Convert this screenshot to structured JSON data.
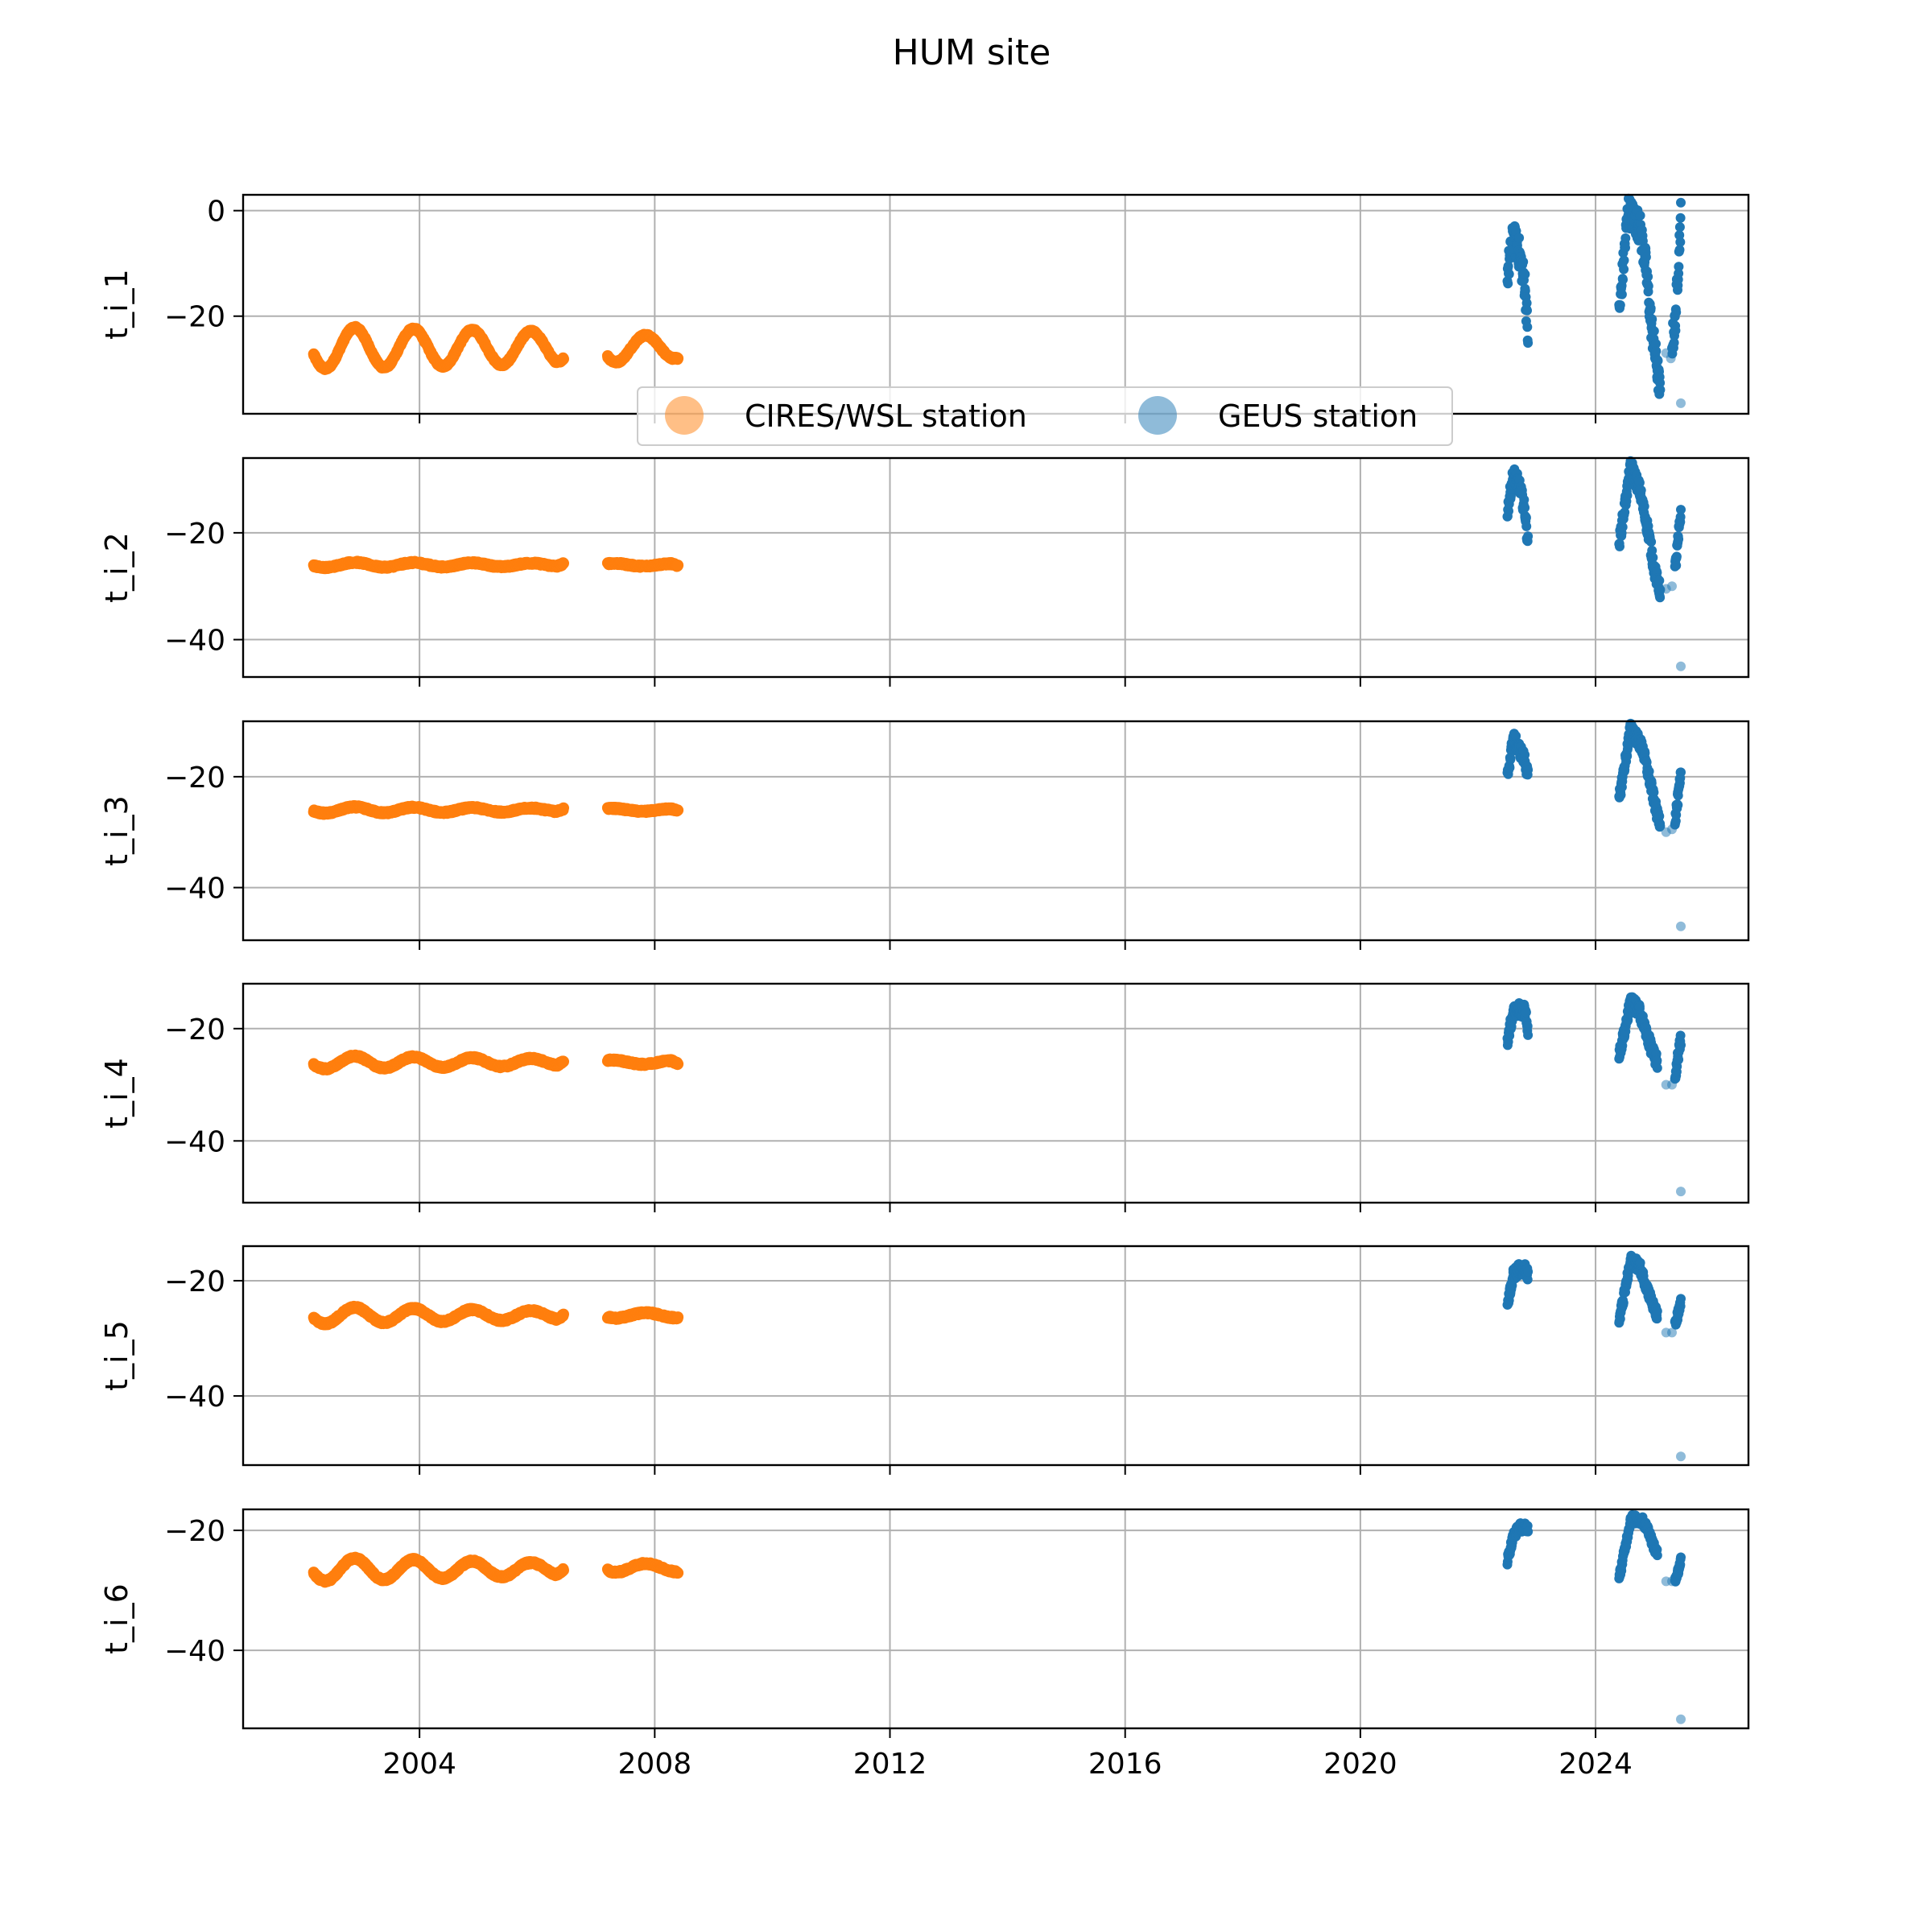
{
  "chart_data": {
    "title": "HUM site",
    "type": "scatter",
    "xlim": [
      2001.0,
      2026.6
    ],
    "x_ticks": [
      2004,
      2008,
      2012,
      2016,
      2020,
      2024
    ],
    "grid": true,
    "legend": {
      "placement": "between-top-panels",
      "entries": [
        {
          "name": "CIRES/WSL station",
          "color": "#ff7f0e",
          "alpha": 0.5
        },
        {
          "name": "GEUS station",
          "color": "#1f77b4",
          "alpha": 0.5
        }
      ]
    },
    "colors": {
      "cires": "#ff7f0e",
      "geus": "#1f77b4"
    },
    "panels": [
      {
        "ylabel": "t_i_1",
        "ylim": [
          -38.5,
          3
        ],
        "yticks": [
          0,
          -20
        ],
        "cires": {
          "segments": [
            {
              "x0": 2002.2,
              "x1": 2006.45,
              "mean": -26.0,
              "amp": 4.0,
              "ampEnd": 3.0,
              "peak": 2002.9,
              "end": -28.0
            },
            {
              "x0": 2007.2,
              "x1": 2008.4,
              "mean": -26.0,
              "amp": 2.8,
              "ampEnd": 2.0,
              "peak": 2007.85,
              "end": -28.0
            }
          ]
        },
        "geus": {
          "tracks": [
            [
              [
                2022.5,
                -12
              ],
              [
                2022.6,
                -5
              ],
              [
                2022.7,
                -8
              ],
              [
                2022.8,
                -14
              ],
              [
                2022.85,
                -24
              ]
            ],
            [
              [
                2024.4,
                -20
              ],
              [
                2024.55,
                0
              ],
              [
                2024.75,
                -3
              ],
              [
                2024.85,
                -10
              ],
              [
                2024.95,
                -22
              ],
              [
                2025.05,
                -30
              ],
              [
                2025.1,
                -35
              ]
            ],
            [
              [
                2025.3,
                -25
              ],
              [
                2025.35,
                -22
              ],
              [
                2025.45,
                -1
              ]
            ]
          ],
          "spread": 6,
          "outliers": [
            [
              2025.2,
              -27
            ],
            [
              2025.28,
              -28
            ],
            [
              2025.45,
              -36.5
            ]
          ]
        }
      },
      {
        "ylabel": "t_i_2",
        "ylim": [
          -47,
          -6
        ],
        "yticks": [
          -20,
          -40
        ],
        "cires": {
          "segments": [
            {
              "x0": 2002.2,
              "x1": 2006.45,
              "mean": -26.0,
              "amp": 0.5,
              "ampEnd": 0.3,
              "peak": 2003.9,
              "end": -25.8
            },
            {
              "x0": 2007.2,
              "x1": 2008.4,
              "mean": -26.0,
              "amp": 0.3,
              "ampEnd": 0.2,
              "peak": 2007.3,
              "end": -26.2
            }
          ]
        },
        "geus": {
          "tracks": [
            [
              [
                2022.5,
                -16
              ],
              [
                2022.6,
                -9
              ],
              [
                2022.7,
                -11
              ],
              [
                2022.8,
                -16
              ],
              [
                2022.85,
                -22
              ]
            ],
            [
              [
                2024.4,
                -22
              ],
              [
                2024.6,
                -7.5
              ],
              [
                2024.75,
                -12
              ],
              [
                2024.9,
                -20
              ],
              [
                2025.0,
                -27
              ],
              [
                2025.1,
                -31
              ]
            ],
            [
              [
                2025.35,
                -27
              ],
              [
                2025.4,
                -22
              ],
              [
                2025.45,
                -16
              ]
            ]
          ],
          "spread": 3,
          "outliers": [
            [
              2025.2,
              -30.5
            ],
            [
              2025.3,
              -30
            ],
            [
              2025.45,
              -45
            ]
          ]
        }
      },
      {
        "ylabel": "t_i_3",
        "ylim": [
          -49.5,
          -10
        ],
        "yticks": [
          -20,
          -40
        ],
        "cires": {
          "segments": [
            {
              "x0": 2002.2,
              "x1": 2006.45,
              "mean": -26.0,
              "amp": 0.6,
              "ampEnd": 0.3,
              "peak": 2003.9,
              "end": -25.8
            },
            {
              "x0": 2007.2,
              "x1": 2008.4,
              "mean": -26.0,
              "amp": 0.3,
              "ampEnd": 0.2,
              "peak": 2007.3,
              "end": -26.2
            }
          ]
        },
        "geus": {
          "tracks": [
            [
              [
                2022.5,
                -20
              ],
              [
                2022.6,
                -13
              ],
              [
                2022.7,
                -15
              ],
              [
                2022.8,
                -17
              ],
              [
                2022.85,
                -20
              ]
            ],
            [
              [
                2024.4,
                -24
              ],
              [
                2024.6,
                -11
              ],
              [
                2024.8,
                -15
              ],
              [
                2024.95,
                -22
              ],
              [
                2025.05,
                -27
              ],
              [
                2025.1,
                -28
              ]
            ],
            [
              [
                2025.35,
                -28
              ],
              [
                2025.4,
                -24
              ],
              [
                2025.45,
                -20
              ]
            ]
          ],
          "spread": 2.5,
          "outliers": [
            [
              2025.2,
              -30
            ],
            [
              2025.3,
              -29.5
            ],
            [
              2025.45,
              -47
            ]
          ]
        }
      },
      {
        "ylabel": "t_i_4",
        "ylim": [
          -51,
          -12
        ],
        "yticks": [
          -20,
          -40
        ],
        "cires": {
          "segments": [
            {
              "x0": 2002.2,
              "x1": 2006.45,
              "mean": -26.0,
              "amp": 1.2,
              "ampEnd": 0.6,
              "peak": 2003.9,
              "end": -25.8
            },
            {
              "x0": 2007.2,
              "x1": 2008.4,
              "mean": -26.0,
              "amp": 0.4,
              "ampEnd": 0.3,
              "peak": 2007.3,
              "end": -26.3
            }
          ]
        },
        "geus": {
          "tracks": [
            [
              [
                2022.5,
                -22
              ],
              [
                2022.6,
                -17
              ],
              [
                2022.7,
                -16.5
              ],
              [
                2022.8,
                -17
              ],
              [
                2022.85,
                -20
              ]
            ],
            [
              [
                2024.4,
                -25
              ],
              [
                2024.6,
                -15
              ],
              [
                2024.75,
                -17
              ],
              [
                2024.9,
                -22
              ],
              [
                2025.0,
                -25
              ],
              [
                2025.05,
                -26
              ]
            ],
            [
              [
                2025.35,
                -29
              ],
              [
                2025.4,
                -25
              ],
              [
                2025.45,
                -22
              ]
            ]
          ],
          "spread": 2.5,
          "outliers": [
            [
              2025.2,
              -30
            ],
            [
              2025.3,
              -30
            ],
            [
              2025.45,
              -49
            ]
          ]
        }
      },
      {
        "ylabel": "t_i_5",
        "ylim": [
          -52,
          -14
        ],
        "yticks": [
          -20,
          -40
        ],
        "cires": {
          "segments": [
            {
              "x0": 2002.2,
              "x1": 2006.45,
              "mean": -26.0,
              "amp": 1.5,
              "ampEnd": 0.7,
              "peak": 2003.9,
              "end": -26.0
            },
            {
              "x0": 2007.2,
              "x1": 2008.4,
              "mean": -26.0,
              "amp": 0.5,
              "ampEnd": 0.4,
              "peak": 2007.85,
              "end": -26.5
            }
          ]
        },
        "geus": {
          "tracks": [
            [
              [
                2022.5,
                -24
              ],
              [
                2022.6,
                -19
              ],
              [
                2022.7,
                -18
              ],
              [
                2022.8,
                -18
              ],
              [
                2022.85,
                -19
              ]
            ],
            [
              [
                2024.4,
                -27
              ],
              [
                2024.6,
                -16.5
              ],
              [
                2024.75,
                -17.5
              ],
              [
                2024.9,
                -22
              ],
              [
                2025.0,
                -25
              ],
              [
                2025.05,
                -26
              ]
            ],
            [
              [
                2025.35,
                -28
              ],
              [
                2025.4,
                -26
              ],
              [
                2025.45,
                -24
              ]
            ]
          ],
          "spread": 2,
          "outliers": [
            [
              2025.2,
              -29
            ],
            [
              2025.3,
              -29
            ],
            [
              2025.45,
              -50.5
            ]
          ]
        }
      },
      {
        "ylabel": "t_i_6",
        "ylim": [
          -53,
          -16.5
        ],
        "yticks": [
          -20,
          -40
        ],
        "cires": {
          "segments": [
            {
              "x0": 2002.2,
              "x1": 2006.45,
              "mean": -26.5,
              "amp": 2.0,
              "ampEnd": 1.0,
              "peak": 2002.9,
              "end": -26.5
            },
            {
              "x0": 2007.2,
              "x1": 2008.4,
              "mean": -26.2,
              "amp": 0.8,
              "ampEnd": 0.6,
              "peak": 2007.85,
              "end": -27.0
            }
          ]
        },
        "geus": {
          "tracks": [
            [
              [
                2022.5,
                -25
              ],
              [
                2022.6,
                -21
              ],
              [
                2022.7,
                -19.5
              ],
              [
                2022.8,
                -19.5
              ],
              [
                2022.85,
                -19.5
              ]
            ],
            [
              [
                2024.4,
                -28
              ],
              [
                2024.6,
                -18
              ],
              [
                2024.8,
                -18.5
              ],
              [
                2024.9,
                -20
              ],
              [
                2025.0,
                -23
              ],
              [
                2025.05,
                -24
              ]
            ],
            [
              [
                2025.35,
                -28
              ],
              [
                2025.4,
                -27
              ],
              [
                2025.45,
                -25
              ]
            ]
          ],
          "spread": 1.5,
          "outliers": [
            [
              2025.2,
              -28.5
            ],
            [
              2025.3,
              -28.5
            ],
            [
              2025.45,
              -51.5
            ]
          ]
        }
      }
    ]
  }
}
